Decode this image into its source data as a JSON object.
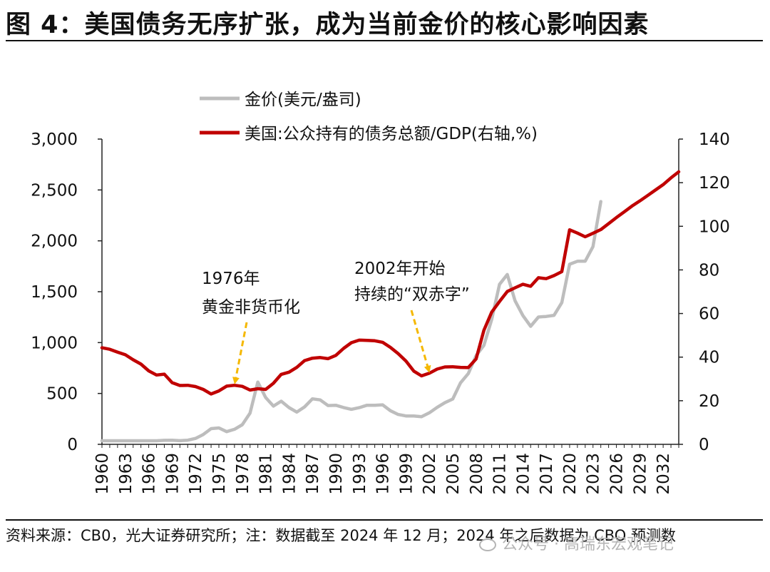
{
  "title": "图 4：美国债务无序扩张，成为当前金价的核心影响因素",
  "source_note": "资料来源：CB0，光大证券研究所；注：数据截至 2024 年 12 月；2024 年之后数据为 CBO 预测数",
  "watermark": "公众号 · 高瑞东宏观笔记",
  "colors": {
    "gold": "#BDBDBD",
    "debt": "#C00000",
    "arrow": "#F5B800"
  },
  "chart_data": {
    "type": "line",
    "left_axis": {
      "min": 0,
      "max": 3000,
      "ticks": [
        0,
        500,
        1000,
        1500,
        2000,
        2500,
        3000
      ],
      "tick_labels": [
        "0",
        "500",
        "1,000",
        "1,500",
        "2,000",
        "2,500",
        "3,000"
      ]
    },
    "right_axis": {
      "min": 0,
      "max": 140,
      "ticks": [
        0,
        20,
        40,
        60,
        80,
        100,
        120,
        140
      ],
      "tick_labels": [
        "0",
        "20",
        "40",
        "60",
        "80",
        "100",
        "120",
        "140"
      ]
    },
    "x_range": [
      1960,
      2034
    ],
    "x_tick_labels": [
      "1960",
      "1963",
      "1966",
      "1969",
      "1972",
      "1975",
      "1978",
      "1981",
      "1984",
      "1987",
      "1990",
      "1993",
      "1996",
      "1999",
      "2002",
      "2005",
      "2008",
      "2011",
      "2014",
      "2017",
      "2020",
      "2023",
      "2026",
      "2029",
      "2032"
    ],
    "series": [
      {
        "name": "金价(美元/盎司)",
        "axis": "left",
        "x": [
          1960,
          1961,
          1962,
          1963,
          1964,
          1965,
          1966,
          1967,
          1968,
          1969,
          1970,
          1971,
          1972,
          1973,
          1974,
          1975,
          1976,
          1977,
          1978,
          1979,
          1980,
          1981,
          1982,
          1983,
          1984,
          1985,
          1986,
          1987,
          1988,
          1989,
          1990,
          1991,
          1992,
          1993,
          1994,
          1995,
          1996,
          1997,
          1998,
          1999,
          2000,
          2001,
          2002,
          2003,
          2004,
          2005,
          2006,
          2007,
          2008,
          2009,
          2010,
          2011,
          2012,
          2013,
          2014,
          2015,
          2016,
          2017,
          2018,
          2019,
          2020,
          2021,
          2022,
          2023,
          2024
        ],
        "values": [
          35,
          35,
          35,
          35,
          35,
          35,
          35,
          35,
          39,
          41,
          36,
          41,
          58,
          97,
          154,
          161,
          125,
          148,
          193,
          307,
          612,
          460,
          376,
          424,
          361,
          317,
          368,
          447,
          437,
          381,
          384,
          362,
          344,
          360,
          384,
          384,
          388,
          331,
          294,
          279,
          279,
          271,
          310,
          363,
          409,
          445,
          604,
          695,
          872,
          972,
          1225,
          1572,
          1669,
          1411,
          1266,
          1160,
          1251,
          1257,
          1268,
          1393,
          1770,
          1799,
          1800,
          1943,
          2386
        ]
      },
      {
        "name": "美国:公众持有的债务总额/GDP(右轴,%)",
        "axis": "right",
        "x": [
          1960,
          1961,
          1962,
          1963,
          1964,
          1965,
          1966,
          1967,
          1968,
          1969,
          1970,
          1971,
          1972,
          1973,
          1974,
          1975,
          1976,
          1977,
          1978,
          1979,
          1980,
          1981,
          1982,
          1983,
          1984,
          1985,
          1986,
          1987,
          1988,
          1989,
          1990,
          1991,
          1992,
          1993,
          1994,
          1995,
          1996,
          1997,
          1998,
          1999,
          2000,
          2001,
          2002,
          2003,
          2004,
          2005,
          2006,
          2007,
          2008,
          2009,
          2010,
          2011,
          2012,
          2013,
          2014,
          2015,
          2016,
          2017,
          2018,
          2019,
          2020,
          2021,
          2022,
          2023,
          2024,
          2025,
          2026,
          2027,
          2028,
          2029,
          2030,
          2031,
          2032,
          2033,
          2034
        ],
        "values": [
          44.3,
          43.6,
          42.3,
          41.1,
          38.8,
          36.8,
          33.7,
          31.8,
          32.2,
          28.3,
          27.0,
          27.1,
          26.5,
          25.2,
          23.1,
          24.5,
          26.7,
          27.1,
          26.6,
          24.9,
          25.5,
          25.2,
          28.0,
          32.1,
          33.1,
          35.3,
          38.4,
          39.5,
          39.8,
          39.3,
          40.8,
          44.0,
          46.6,
          47.8,
          47.7,
          47.5,
          46.8,
          44.5,
          41.6,
          38.2,
          33.6,
          31.4,
          32.6,
          34.5,
          35.5,
          35.6,
          35.3,
          35.2,
          39.2,
          52.3,
          60.6,
          65.5,
          70.1,
          71.8,
          73.4,
          72.5,
          76.4,
          76.0,
          77.4,
          79.2,
          98.4,
          96.9,
          95.2,
          96.8,
          98.5,
          101.2,
          104.0,
          106.6,
          109.3,
          111.6,
          114.1,
          116.6,
          119.1,
          122.2,
          125.0
        ]
      }
    ],
    "legend_position": "top-center",
    "grid": false,
    "annotations": [
      {
        "line1": "1976年",
        "line2": "黄金非货币化",
        "x": 1976,
        "axis_value": 26.7
      },
      {
        "line1": "2002年开始",
        "line2": "持续的“双赤字”",
        "x": 2002,
        "axis_value": 32.6
      }
    ]
  }
}
